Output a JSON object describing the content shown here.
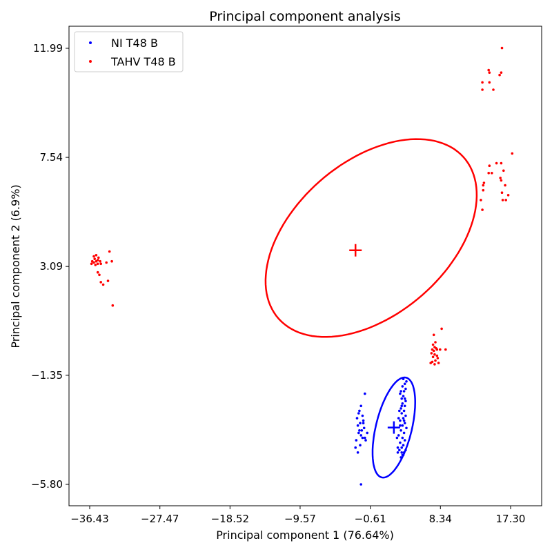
{
  "chart_data": {
    "type": "scatter",
    "title": "Principal component analysis",
    "xlabel": "Principal component 1 (76.64%)",
    "ylabel": "Principal component 2 (6.9%)",
    "xlim": [
      -36.43,
      17.3
    ],
    "ylim": [
      -5.8,
      11.99
    ],
    "xticks": [
      "-36.43",
      "-27.47",
      "-18.52",
      "-9.57",
      "-0.61",
      "8.34",
      "17.30"
    ],
    "yticks": [
      "11.99",
      "7.54",
      "3.09",
      "-1.35",
      "-5.80"
    ],
    "legend_position": "top-left",
    "series": [
      {
        "name": "NI T48 B",
        "color": "#0000ff",
        "centroid": [
          2.4,
          -3.48
        ],
        "ellipse": {
          "center": [
            2.4,
            -3.48
          ],
          "semi_axis_major": 3.0,
          "semi_axis_minor": 1.6,
          "angle_deg": 30
        },
        "points": [
          [
            -1.3,
            -2.1
          ],
          [
            -1.8,
            -2.6
          ],
          [
            -2.0,
            -2.8
          ],
          [
            -1.6,
            -3.0
          ],
          [
            -2.3,
            -3.1
          ],
          [
            -1.5,
            -3.2
          ],
          [
            -1.9,
            -3.3
          ],
          [
            -2.2,
            -3.4
          ],
          [
            -1.4,
            -3.5
          ],
          [
            -1.7,
            -3.6
          ],
          [
            -2.1,
            -3.7
          ],
          [
            -1.8,
            -3.8
          ],
          [
            -1.6,
            -3.9
          ],
          [
            -2.4,
            -4.0
          ],
          [
            -1.2,
            -4.0
          ],
          [
            -1.9,
            -4.2
          ],
          [
            -2.5,
            -4.3
          ],
          [
            -2.2,
            -4.5
          ],
          [
            -1.8,
            -5.8
          ],
          [
            -1.5,
            -3.3
          ],
          [
            -2.0,
            -3.6
          ],
          [
            -1.3,
            -3.9
          ],
          [
            -1.0,
            -3.7
          ],
          [
            -2.1,
            -2.9
          ],
          [
            3.6,
            -1.5
          ],
          [
            4.0,
            -1.6
          ],
          [
            3.8,
            -1.7
          ],
          [
            3.5,
            -1.8
          ],
          [
            3.9,
            -1.9
          ],
          [
            3.3,
            -2.0
          ],
          [
            3.7,
            -2.0
          ],
          [
            3.2,
            -2.1
          ],
          [
            3.6,
            -2.2
          ],
          [
            3.4,
            -2.3
          ],
          [
            3.9,
            -2.4
          ],
          [
            3.5,
            -2.5
          ],
          [
            3.8,
            -2.6
          ],
          [
            3.3,
            -2.7
          ],
          [
            3.7,
            -2.8
          ],
          [
            3.4,
            -2.9
          ],
          [
            3.9,
            -3.0
          ],
          [
            3.6,
            -3.1
          ],
          [
            3.2,
            -3.2
          ],
          [
            3.8,
            -3.3
          ],
          [
            3.5,
            -3.4
          ],
          [
            4.0,
            -3.5
          ],
          [
            3.3,
            -3.6
          ],
          [
            3.7,
            -3.7
          ],
          [
            3.5,
            -3.9
          ],
          [
            3.8,
            -4.0
          ],
          [
            3.2,
            -4.1
          ],
          [
            3.6,
            -4.2
          ],
          [
            3.4,
            -4.3
          ],
          [
            3.9,
            -4.4
          ],
          [
            3.7,
            -4.5
          ],
          [
            3.5,
            -4.6
          ],
          [
            3.3,
            -4.7
          ],
          [
            3.6,
            -4.6
          ],
          [
            3.4,
            -4.5
          ],
          [
            3.1,
            -4.4
          ],
          [
            3.0,
            -3.8
          ],
          [
            2.8,
            -3.9
          ],
          [
            2.9,
            -4.3
          ],
          [
            3.1,
            -2.8
          ],
          [
            3.0,
            -3.1
          ],
          [
            3.2,
            -3.4
          ],
          [
            3.8,
            -2.3
          ],
          [
            3.4,
            -2.6
          ],
          [
            2.9,
            -4.5
          ],
          [
            3.7,
            -3.2
          ]
        ]
      },
      {
        "name": "TAHV T48 B",
        "color": "#ff0000",
        "centroid": [
          -2.5,
          3.75
        ],
        "ellipse": {
          "center": [
            -0.5,
            4.25
          ],
          "semi_axis_major": 13.6,
          "semi_axis_minor": 3.6,
          "angle_deg": 8
        },
        "points": [
          [
            -35.6,
            3.55
          ],
          [
            -35.9,
            3.5
          ],
          [
            -35.3,
            3.45
          ],
          [
            -35.8,
            3.4
          ],
          [
            -35.4,
            3.35
          ],
          [
            -36.1,
            3.3
          ],
          [
            -35.6,
            3.3
          ],
          [
            -35.1,
            3.3
          ],
          [
            -35.9,
            3.25
          ],
          [
            -35.4,
            3.2
          ],
          [
            -36.2,
            3.2
          ],
          [
            -35.7,
            3.15
          ],
          [
            -35.0,
            3.2
          ],
          [
            -34.3,
            3.25
          ],
          [
            -33.6,
            3.3
          ],
          [
            -33.9,
            3.7
          ],
          [
            -35.4,
            2.85
          ],
          [
            -35.2,
            2.75
          ],
          [
            -34.1,
            2.5
          ],
          [
            -35.0,
            2.45
          ],
          [
            -34.7,
            2.35
          ],
          [
            -33.5,
            1.5
          ],
          [
            7.5,
            0.3
          ],
          [
            7.7,
            0.0
          ],
          [
            7.4,
            -0.1
          ],
          [
            7.6,
            -0.2
          ],
          [
            7.8,
            -0.25
          ],
          [
            7.3,
            -0.3
          ],
          [
            7.5,
            -0.35
          ],
          [
            7.9,
            -0.3
          ],
          [
            8.3,
            -0.3
          ],
          [
            7.2,
            -0.45
          ],
          [
            7.6,
            -0.5
          ],
          [
            7.9,
            -0.55
          ],
          [
            7.4,
            -0.6
          ],
          [
            8.0,
            -0.65
          ],
          [
            7.7,
            -0.75
          ],
          [
            7.3,
            -0.8
          ],
          [
            7.1,
            -0.85
          ],
          [
            8.1,
            -0.85
          ],
          [
            7.6,
            -0.9
          ],
          [
            8.5,
            0.55
          ],
          [
            9.0,
            -0.3
          ],
          [
            14.5,
            11.1
          ],
          [
            14.6,
            11.0
          ],
          [
            16.1,
            11.0
          ],
          [
            15.9,
            10.9
          ],
          [
            13.7,
            10.6
          ],
          [
            14.6,
            10.6
          ],
          [
            13.7,
            10.3
          ],
          [
            15.1,
            10.3
          ],
          [
            16.2,
            12.0
          ],
          [
            17.5,
            7.7
          ],
          [
            14.6,
            7.2
          ],
          [
            15.5,
            7.3
          ],
          [
            16.1,
            7.3
          ],
          [
            16.4,
            7.0
          ],
          [
            14.5,
            6.9
          ],
          [
            14.9,
            6.9
          ],
          [
            16.0,
            6.7
          ],
          [
            16.1,
            6.6
          ],
          [
            13.9,
            6.5
          ],
          [
            13.8,
            6.4
          ],
          [
            16.6,
            6.4
          ],
          [
            13.8,
            6.2
          ],
          [
            16.2,
            6.1
          ],
          [
            17.0,
            6.0
          ],
          [
            13.5,
            5.8
          ],
          [
            16.7,
            5.8
          ],
          [
            13.7,
            5.4
          ],
          [
            16.3,
            5.8
          ]
        ]
      }
    ]
  }
}
